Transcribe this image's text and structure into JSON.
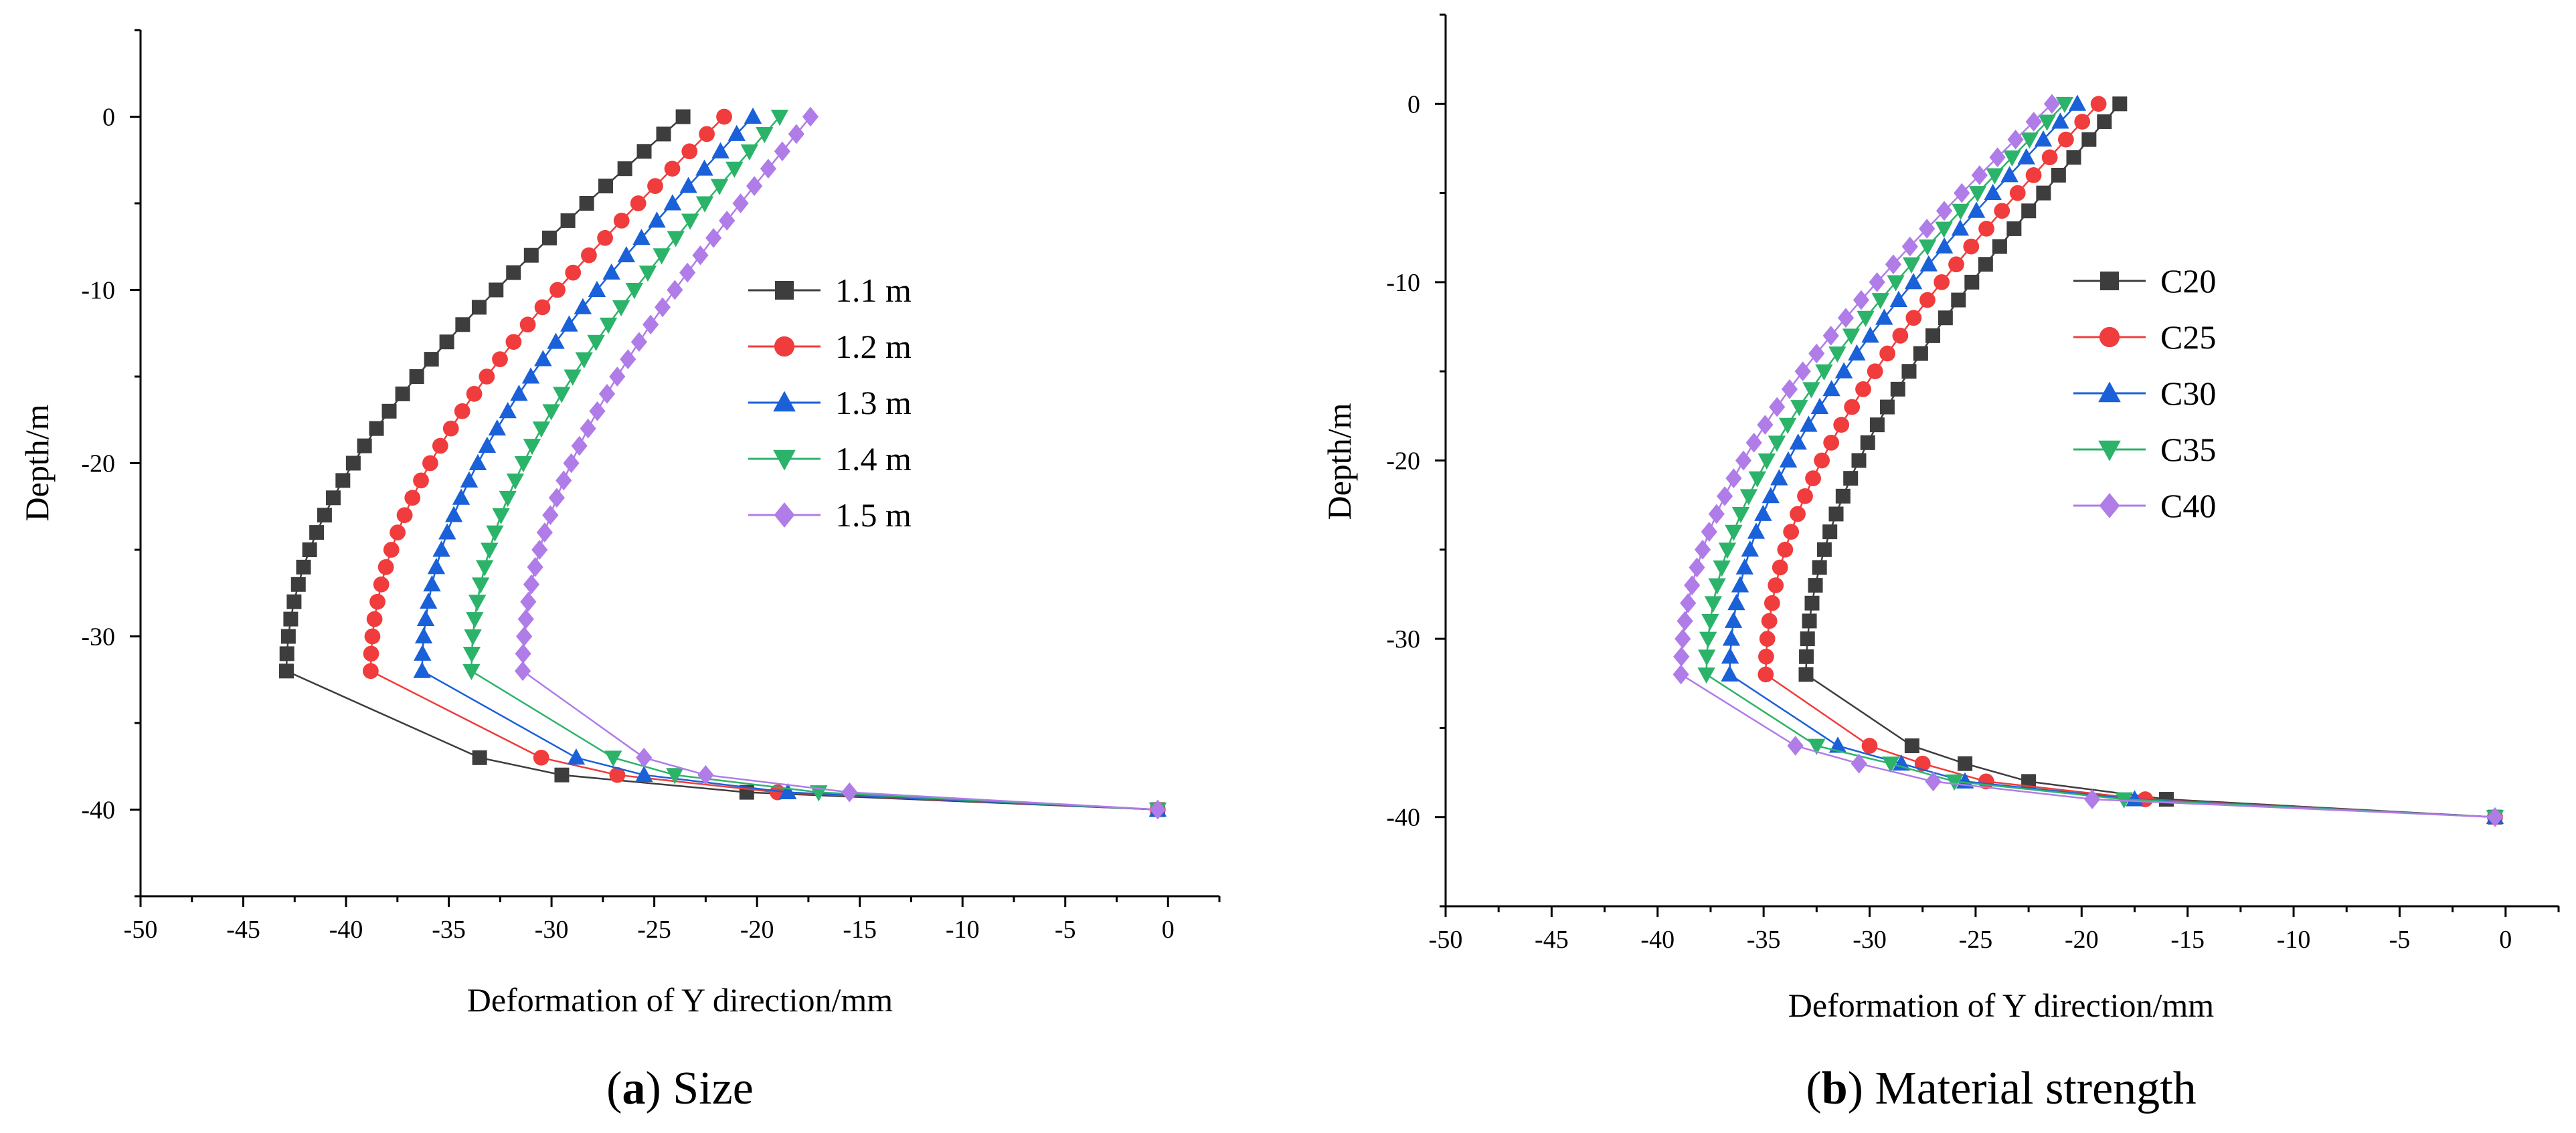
{
  "chart_data": [
    {
      "type": "line",
      "panel": "a",
      "caption_letter": "a",
      "caption_text": "Size",
      "xlabel": "Deformation of Y direction/mm",
      "ylabel": "Depth/m",
      "xlim": [
        -50,
        2.5
      ],
      "ylim": [
        -45,
        5
      ],
      "xticks": [
        -50,
        -45,
        -40,
        -35,
        -30,
        -25,
        -20,
        -15,
        -10,
        -5,
        0
      ],
      "yticks": [
        0,
        -10,
        -20,
        -30,
        -40
      ],
      "legend_position": "center-right",
      "series": [
        {
          "name": "1.1 m",
          "marker": "square",
          "color": "#3d3d3d",
          "top_x": -23.6,
          "mid_x": -42.9,
          "mid_depth": -32,
          "bend": [
            [
              -33.5,
              -37
            ],
            [
              -29.5,
              -38
            ],
            [
              -20.5,
              -39
            ]
          ],
          "end": [
            -0.5,
            -40
          ]
        },
        {
          "name": "1.2 m",
          "marker": "circle",
          "color": "#f03c3c",
          "top_x": -21.6,
          "mid_x": -38.8,
          "mid_depth": -32,
          "bend": [
            [
              -30.5,
              -37
            ],
            [
              -26.8,
              -38
            ],
            [
              -19.0,
              -39
            ]
          ],
          "end": [
            -0.5,
            -40
          ]
        },
        {
          "name": "1.3 m",
          "marker": "triangle-up",
          "color": "#1a60d8",
          "top_x": -20.2,
          "mid_x": -36.3,
          "mid_depth": -32,
          "bend": [
            [
              -28.8,
              -37
            ],
            [
              -25.5,
              -38
            ],
            [
              -18.5,
              -39
            ]
          ],
          "end": [
            -0.5,
            -40
          ]
        },
        {
          "name": "1.4 m",
          "marker": "triangle-down",
          "color": "#2cb36a",
          "top_x": -18.9,
          "mid_x": -33.9,
          "mid_depth": -32,
          "bend": [
            [
              -27.0,
              -37
            ],
            [
              -24.0,
              -38
            ],
            [
              -17.0,
              -39
            ]
          ],
          "end": [
            -0.5,
            -40
          ]
        },
        {
          "name": "1.5 m",
          "marker": "diamond",
          "color": "#b07ce8",
          "top_x": -17.4,
          "mid_x": -31.4,
          "mid_depth": -32,
          "bend": [
            [
              -25.5,
              -37
            ],
            [
              -22.5,
              -38
            ],
            [
              -15.5,
              -39
            ]
          ],
          "end": [
            -0.5,
            -40
          ]
        }
      ]
    },
    {
      "type": "line",
      "panel": "b",
      "caption_letter": "b",
      "caption_text": "Material strength",
      "xlabel": "Deformation of Y direction/mm",
      "ylabel": "Depth/m",
      "xlim": [
        -50,
        2.5
      ],
      "ylim": [
        -45,
        5
      ],
      "xticks": [
        -50,
        -45,
        -40,
        -35,
        -30,
        -25,
        -20,
        -15,
        -10,
        -5,
        0
      ],
      "yticks": [
        0,
        -10,
        -20,
        -30,
        -40
      ],
      "legend_position": "center-right",
      "series": [
        {
          "name": "C20",
          "marker": "square",
          "color": "#3d3d3d",
          "top_x": -18.2,
          "mid_x": -33.0,
          "mid_depth": -32,
          "bend": [
            [
              -28.0,
              -36
            ],
            [
              -25.5,
              -37
            ],
            [
              -22.5,
              -38
            ],
            [
              -16.0,
              -39
            ]
          ],
          "end": [
            -0.5,
            -40
          ]
        },
        {
          "name": "C25",
          "marker": "circle",
          "color": "#f03c3c",
          "top_x": -19.2,
          "mid_x": -34.9,
          "mid_depth": -32,
          "bend": [
            [
              -30.0,
              -36
            ],
            [
              -27.5,
              -37
            ],
            [
              -24.5,
              -38
            ],
            [
              -17.0,
              -39
            ]
          ],
          "end": [
            -0.5,
            -40
          ]
        },
        {
          "name": "C30",
          "marker": "triangle-up",
          "color": "#1a60d8",
          "top_x": -20.2,
          "mid_x": -36.6,
          "mid_depth": -32,
          "bend": [
            [
              -31.5,
              -36
            ],
            [
              -28.5,
              -37
            ],
            [
              -25.5,
              -38
            ],
            [
              -17.5,
              -39
            ]
          ],
          "end": [
            -0.5,
            -40
          ]
        },
        {
          "name": "C35",
          "marker": "triangle-down",
          "color": "#2cb36a",
          "top_x": -20.8,
          "mid_x": -37.7,
          "mid_depth": -32,
          "bend": [
            [
              -32.5,
              -36
            ],
            [
              -29.0,
              -37
            ],
            [
              -26.0,
              -38
            ],
            [
              -18.0,
              -39
            ]
          ],
          "end": [
            -0.5,
            -40
          ]
        },
        {
          "name": "C40",
          "marker": "diamond",
          "color": "#b07ce8",
          "top_x": -21.4,
          "mid_x": -38.9,
          "mid_depth": -32,
          "bend": [
            [
              -33.5,
              -36
            ],
            [
              -30.5,
              -37
            ],
            [
              -27.0,
              -38
            ],
            [
              -19.5,
              -39
            ]
          ],
          "end": [
            -0.5,
            -40
          ]
        }
      ]
    }
  ]
}
